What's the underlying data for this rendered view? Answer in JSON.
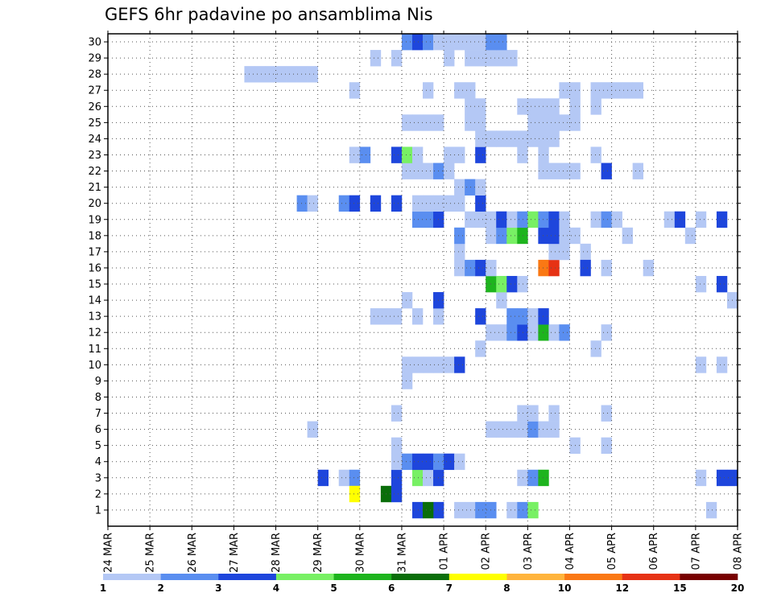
{
  "chart_data": {
    "type": "heatmap",
    "title": "GEFS 6hr padavine po ansamblima Nis",
    "x_tick_labels": [
      "24 MAR",
      "25 MAR",
      "26 MAR",
      "27 MAR",
      "28 MAR",
      "29 MAR",
      "30 MAR",
      "31 MAR",
      "01 APR",
      "02 APR",
      "03 APR",
      "04 APR",
      "05 APR",
      "06 APR",
      "07 APR",
      "08 APR"
    ],
    "y_tick_labels": [
      "1",
      "2",
      "3",
      "4",
      "5",
      "6",
      "7",
      "8",
      "9",
      "10",
      "11",
      "12",
      "13",
      "14",
      "15",
      "16",
      "17",
      "18",
      "19",
      "20",
      "21",
      "22",
      "23",
      "24",
      "25",
      "26",
      "27",
      "28",
      "29",
      "30"
    ],
    "steps_per_day": 4,
    "num_steps": 60,
    "grid": "dotted",
    "legend": {
      "placement": "bottom",
      "colors": [
        "#b4c8f5",
        "#5a8ef0",
        "#1e46dc",
        "#78f064",
        "#1eb41e",
        "#0a6e0a",
        "#ffff00",
        "#ffb43c",
        "#fa7814",
        "#e63214",
        "#780000"
      ],
      "labels": [
        "1",
        "2",
        "3",
        "4",
        "5",
        "6",
        "7",
        "8",
        "10",
        "12",
        "15",
        "20"
      ]
    },
    "cells": [
      [
        24,
        27,
        1
      ],
      [
        30,
        1,
        3
      ],
      [
        32,
        1,
        3
      ],
      [
        31,
        1,
        6
      ],
      [
        34,
        1,
        1
      ],
      [
        35,
        1,
        1
      ],
      [
        36,
        1,
        2
      ],
      [
        37,
        1,
        2
      ],
      [
        39,
        1,
        1
      ],
      [
        40,
        1,
        2
      ],
      [
        41,
        1,
        4
      ],
      [
        58,
        1,
        1
      ],
      [
        21,
        3,
        3
      ],
      [
        23,
        3,
        1
      ],
      [
        24,
        3,
        2
      ],
      [
        24,
        2,
        7
      ],
      [
        27,
        2,
        6
      ],
      [
        28,
        2,
        3
      ],
      [
        57,
        3,
        1
      ],
      [
        59,
        3,
        3
      ],
      [
        60,
        3,
        3
      ],
      [
        28,
        3,
        3
      ],
      [
        30,
        3,
        4
      ],
      [
        31,
        3,
        1
      ],
      [
        32,
        3,
        3
      ],
      [
        40,
        3,
        1
      ],
      [
        41,
        3,
        2
      ],
      [
        42,
        3,
        5
      ],
      [
        28,
        4,
        1
      ],
      [
        28,
        5,
        1
      ],
      [
        29,
        4,
        2
      ],
      [
        30,
        4,
        3
      ],
      [
        31,
        4,
        3
      ],
      [
        32,
        4,
        2
      ],
      [
        33,
        4,
        3
      ],
      [
        34,
        4,
        1
      ],
      [
        37,
        6,
        1
      ],
      [
        38,
        6,
        1
      ],
      [
        39,
        6,
        1
      ],
      [
        40,
        6,
        1
      ],
      [
        41,
        6,
        2
      ],
      [
        42,
        6,
        1
      ],
      [
        43,
        6,
        1
      ],
      [
        45,
        5,
        1
      ],
      [
        48,
        5,
        1
      ],
      [
        20,
        6,
        1
      ],
      [
        28,
        7,
        1
      ],
      [
        40,
        7,
        1
      ],
      [
        41,
        7,
        1
      ],
      [
        43,
        7,
        1
      ],
      [
        48,
        7,
        1
      ],
      [
        29,
        9,
        1
      ],
      [
        29,
        10,
        1
      ],
      [
        30,
        10,
        1
      ],
      [
        31,
        10,
        1
      ],
      [
        32,
        10,
        1
      ],
      [
        33,
        10,
        1
      ],
      [
        34,
        10,
        3
      ],
      [
        36,
        11,
        1
      ],
      [
        47,
        11,
        1
      ],
      [
        57,
        10,
        1
      ],
      [
        59,
        10,
        1
      ],
      [
        37,
        12,
        1
      ],
      [
        38,
        12,
        1
      ],
      [
        39,
        12,
        2
      ],
      [
        40,
        12,
        3
      ],
      [
        41,
        12,
        1
      ],
      [
        42,
        12,
        5
      ],
      [
        43,
        12,
        1
      ],
      [
        44,
        12,
        2
      ],
      [
        48,
        12,
        1
      ],
      [
        26,
        13,
        1
      ],
      [
        27,
        13,
        1
      ],
      [
        28,
        13,
        1
      ],
      [
        30,
        13,
        1
      ],
      [
        32,
        13,
        1
      ],
      [
        36,
        13,
        3
      ],
      [
        39,
        13,
        2
      ],
      [
        40,
        13,
        2
      ],
      [
        41,
        13,
        1
      ],
      [
        42,
        13,
        3
      ],
      [
        29,
        14,
        1
      ],
      [
        32,
        14,
        3
      ],
      [
        38,
        14,
        1
      ],
      [
        57,
        15,
        1
      ],
      [
        59,
        15,
        3
      ],
      [
        37,
        15,
        5
      ],
      [
        38,
        15,
        4
      ],
      [
        39,
        15,
        3
      ],
      [
        40,
        15,
        1
      ],
      [
        48,
        16,
        1
      ],
      [
        60,
        14,
        1
      ],
      [
        34,
        16,
        1
      ],
      [
        35,
        16,
        2
      ],
      [
        36,
        16,
        3
      ],
      [
        37,
        16,
        1
      ],
      [
        42,
        16,
        10
      ],
      [
        43,
        16,
        12
      ],
      [
        43,
        17,
        1
      ],
      [
        44,
        17,
        1
      ],
      [
        46,
        17,
        1
      ],
      [
        46,
        16,
        3
      ],
      [
        52,
        16,
        1
      ],
      [
        34,
        17,
        1
      ],
      [
        34,
        18,
        2
      ],
      [
        37,
        18,
        1
      ],
      [
        38,
        18,
        2
      ],
      [
        39,
        18,
        4
      ],
      [
        40,
        18,
        5
      ],
      [
        42,
        18,
        3
      ],
      [
        43,
        18,
        3
      ],
      [
        44,
        18,
        1
      ],
      [
        45,
        18,
        1
      ],
      [
        50,
        18,
        1
      ],
      [
        56,
        18,
        1
      ],
      [
        30,
        19,
        2
      ],
      [
        31,
        19,
        2
      ],
      [
        32,
        19,
        3
      ],
      [
        35,
        19,
        1
      ],
      [
        36,
        19,
        1
      ],
      [
        37,
        19,
        1
      ],
      [
        38,
        19,
        3
      ],
      [
        39,
        19,
        1
      ],
      [
        40,
        19,
        2
      ],
      [
        41,
        19,
        4
      ],
      [
        42,
        19,
        2
      ],
      [
        43,
        19,
        3
      ],
      [
        44,
        19,
        1
      ],
      [
        47,
        19,
        1
      ],
      [
        48,
        19,
        2
      ],
      [
        49,
        19,
        1
      ],
      [
        54,
        19,
        1
      ],
      [
        55,
        19,
        3
      ],
      [
        57,
        19,
        1
      ],
      [
        59,
        19,
        3
      ],
      [
        19,
        20,
        2
      ],
      [
        20,
        20,
        1
      ],
      [
        23,
        20,
        2
      ],
      [
        24,
        20,
        3
      ],
      [
        26,
        20,
        3
      ],
      [
        28,
        20,
        3
      ],
      [
        30,
        20,
        1
      ],
      [
        31,
        20,
        1
      ],
      [
        32,
        20,
        1
      ],
      [
        33,
        20,
        1
      ],
      [
        34,
        20,
        1
      ],
      [
        36,
        20,
        3
      ],
      [
        34,
        21,
        1
      ],
      [
        35,
        21,
        2
      ],
      [
        36,
        21,
        1
      ],
      [
        29,
        22,
        1
      ],
      [
        30,
        22,
        1
      ],
      [
        31,
        22,
        1
      ],
      [
        32,
        22,
        2
      ],
      [
        33,
        22,
        1
      ],
      [
        42,
        22,
        1
      ],
      [
        43,
        22,
        1
      ],
      [
        44,
        22,
        1
      ],
      [
        45,
        22,
        1
      ],
      [
        48,
        22,
        3
      ],
      [
        51,
        22,
        1
      ],
      [
        24,
        23,
        1
      ],
      [
        25,
        23,
        2
      ],
      [
        28,
        23,
        3
      ],
      [
        29,
        23,
        4
      ],
      [
        30,
        23,
        1
      ],
      [
        33,
        23,
        1
      ],
      [
        34,
        23,
        1
      ],
      [
        36,
        23,
        3
      ],
      [
        40,
        23,
        1
      ],
      [
        42,
        23,
        1
      ],
      [
        47,
        23,
        1
      ],
      [
        36,
        24,
        1
      ],
      [
        37,
        24,
        1
      ],
      [
        38,
        24,
        1
      ],
      [
        39,
        24,
        1
      ],
      [
        40,
        24,
        1
      ],
      [
        41,
        24,
        1
      ],
      [
        42,
        24,
        1
      ],
      [
        43,
        24,
        1
      ],
      [
        29,
        25,
        1
      ],
      [
        30,
        25,
        1
      ],
      [
        31,
        25,
        1
      ],
      [
        32,
        25,
        1
      ],
      [
        35,
        25,
        1
      ],
      [
        36,
        25,
        1
      ],
      [
        41,
        25,
        1
      ],
      [
        42,
        25,
        1
      ],
      [
        43,
        25,
        1
      ],
      [
        44,
        25,
        1
      ],
      [
        45,
        25,
        1
      ],
      [
        35,
        26,
        1
      ],
      [
        36,
        26,
        1
      ],
      [
        40,
        26,
        1
      ],
      [
        41,
        26,
        1
      ],
      [
        42,
        26,
        1
      ],
      [
        43,
        26,
        1
      ],
      [
        45,
        26,
        1
      ],
      [
        47,
        26,
        1
      ],
      [
        31,
        27,
        1
      ],
      [
        34,
        27,
        1
      ],
      [
        35,
        27,
        1
      ],
      [
        44,
        27,
        1
      ],
      [
        45,
        27,
        1
      ],
      [
        47,
        27,
        1
      ],
      [
        48,
        27,
        1
      ],
      [
        49,
        27,
        1
      ],
      [
        50,
        27,
        1
      ],
      [
        51,
        27,
        1
      ],
      [
        14,
        28,
        1
      ],
      [
        15,
        28,
        1
      ],
      [
        16,
        28,
        1
      ],
      [
        17,
        28,
        1
      ],
      [
        18,
        28,
        1
      ],
      [
        19,
        28,
        1
      ],
      [
        20,
        28,
        1
      ],
      [
        26,
        29,
        1
      ],
      [
        28,
        29,
        1
      ],
      [
        33,
        29,
        1
      ],
      [
        35,
        29,
        1
      ],
      [
        36,
        29,
        1
      ],
      [
        37,
        29,
        1
      ],
      [
        38,
        29,
        1
      ],
      [
        39,
        29,
        1
      ],
      [
        29,
        30,
        2
      ],
      [
        30,
        30,
        3
      ],
      [
        31,
        30,
        2
      ],
      [
        32,
        30,
        1
      ],
      [
        33,
        30,
        1
      ],
      [
        34,
        30,
        1
      ],
      [
        35,
        30,
        1
      ],
      [
        36,
        30,
        1
      ],
      [
        37,
        30,
        2
      ],
      [
        38,
        30,
        2
      ]
    ]
  }
}
